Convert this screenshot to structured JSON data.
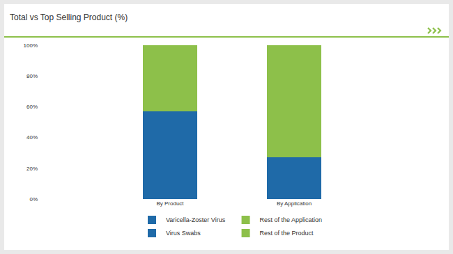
{
  "chart_data": {
    "type": "bar",
    "title": "Total vs Top Selling Product (%)",
    "categories": [
      "By Product",
      "By Application"
    ],
    "series": [
      {
        "name": "Varicella-Zoster Virus",
        "color": "#1f6aa8",
        "values": [
          null,
          27
        ]
      },
      {
        "name": "Rest of the Application",
        "color": "#8dc04a",
        "values": [
          null,
          73
        ]
      },
      {
        "name": "Virus Swabs",
        "color": "#1f6aa8",
        "values": [
          57,
          null
        ]
      },
      {
        "name": "Rest of the Product",
        "color": "#8dc04a",
        "values": [
          43,
          null
        ]
      }
    ],
    "stacked": true,
    "ylim": [
      0,
      100
    ],
    "yticks": [
      {
        "value": 0,
        "label": "0%"
      },
      {
        "value": 20,
        "label": "20%"
      },
      {
        "value": 40,
        "label": "40%"
      },
      {
        "value": 60,
        "label": "60%"
      },
      {
        "value": 80,
        "label": "80%"
      },
      {
        "value": 100,
        "label": "100%"
      }
    ],
    "grid": false,
    "legend": "bottom"
  }
}
